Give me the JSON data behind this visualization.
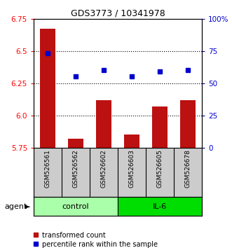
{
  "title": "GDS3773 / 10341978",
  "samples": [
    "GSM526561",
    "GSM526562",
    "GSM526602",
    "GSM526603",
    "GSM526605",
    "GSM526678"
  ],
  "red_values": [
    6.67,
    5.82,
    6.12,
    5.85,
    6.07,
    6.12
  ],
  "blue_values": [
    73,
    55,
    60,
    55,
    59,
    60
  ],
  "ylim_left": [
    5.75,
    6.75
  ],
  "ylim_right": [
    0,
    100
  ],
  "yticks_left": [
    5.75,
    6.0,
    6.25,
    6.5,
    6.75
  ],
  "yticks_right": [
    0,
    25,
    50,
    75,
    100
  ],
  "ytick_labels_right": [
    "0",
    "25",
    "50",
    "75",
    "100%"
  ],
  "hgrid_lines": [
    6.0,
    6.25,
    6.5
  ],
  "groups": [
    {
      "label": "control",
      "indices": [
        0,
        1,
        2
      ],
      "color": "#AAFFAA"
    },
    {
      "label": "IL-6",
      "indices": [
        3,
        4,
        5
      ],
      "color": "#00DD00"
    }
  ],
  "bar_color": "#BB1111",
  "dot_color": "#0000CC",
  "bar_bottom": 5.75,
  "bar_width": 0.55,
  "legend_red_label": "transformed count",
  "legend_blue_label": "percentile rank within the sample",
  "agent_label": "agent",
  "sample_panel_color": "#CCCCCC",
  "title_fontsize": 9,
  "axis_fontsize": 7.5,
  "legend_fontsize": 7,
  "sample_fontsize": 6.5
}
